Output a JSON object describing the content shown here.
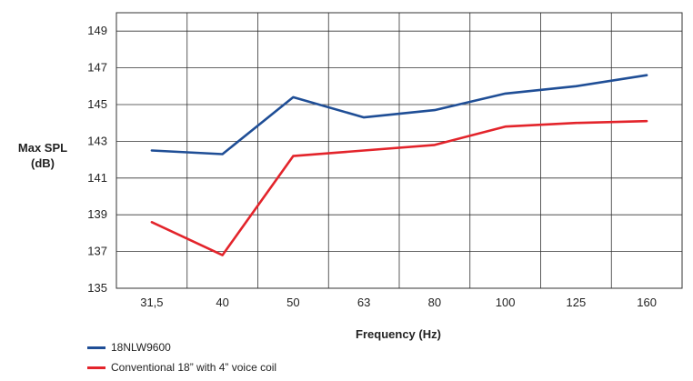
{
  "chart_data": {
    "type": "line",
    "title": "",
    "xlabel": "Frequency (Hz)",
    "ylabel_lines": [
      "Max SPL",
      "(dB)"
    ],
    "categories": [
      "31,5",
      "40",
      "50",
      "63",
      "80",
      "100",
      "125",
      "160"
    ],
    "y_ticks": [
      "149",
      "147",
      "145",
      "143",
      "141",
      "139",
      "137",
      "135"
    ],
    "ylim": [
      135,
      150
    ],
    "grid": true,
    "legend_position": "bottom-left",
    "series": [
      {
        "name": "18NLW9600",
        "color": "#1f4e96",
        "values": [
          142.5,
          142.3,
          145.4,
          144.3,
          144.7,
          145.6,
          146.0,
          146.6
        ]
      },
      {
        "name": "Conventional 18” with 4” voice coil",
        "color": "#e3242b",
        "values": [
          138.6,
          136.8,
          142.2,
          142.5,
          142.8,
          143.8,
          144.0,
          144.1
        ]
      }
    ]
  }
}
